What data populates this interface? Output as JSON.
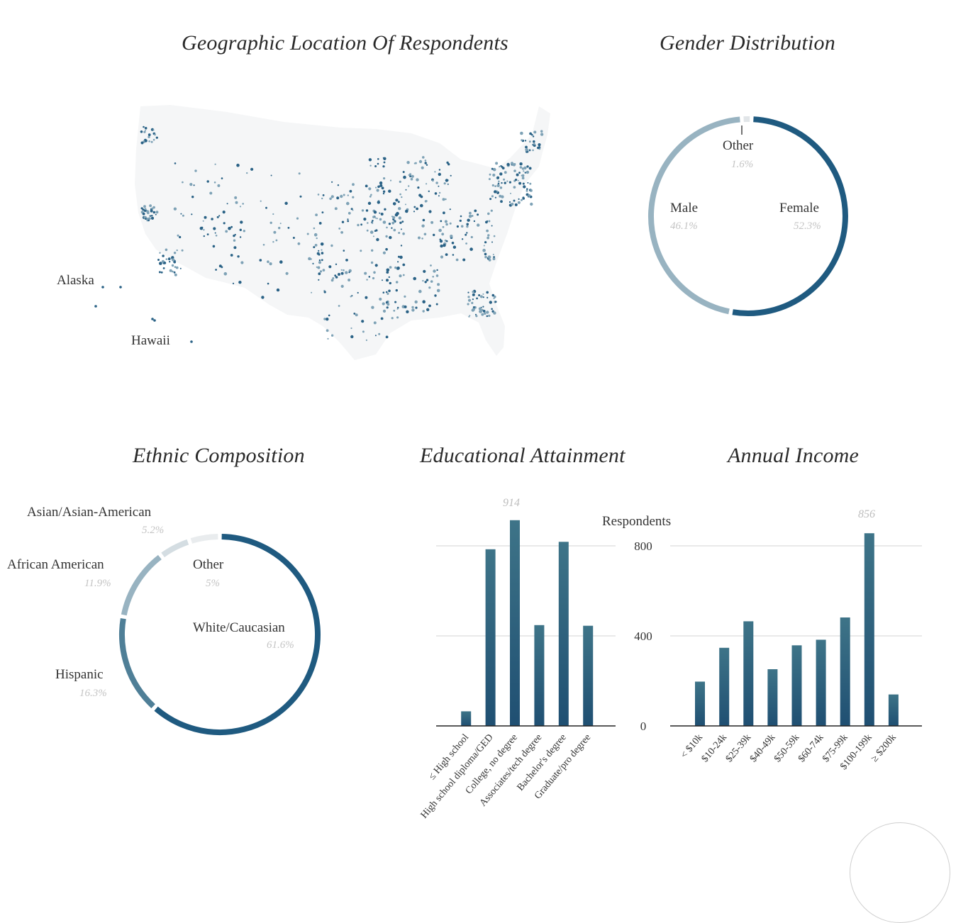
{
  "map": {
    "title": "Geographic Location Of Respondents",
    "labels": {
      "alaska": "Alaska",
      "hawaii": "Hawaii"
    }
  },
  "gender": {
    "title": "Gender Distribution",
    "segments": [
      {
        "name": "Female",
        "pct_label": "52.3%",
        "value": 52.3,
        "color": "#1f5a80"
      },
      {
        "name": "Male",
        "pct_label": "46.1%",
        "value": 46.1,
        "color": "#98b3c1"
      },
      {
        "name": "Other",
        "pct_label": "1.6%",
        "value": 1.6,
        "color": "#e1e5e8"
      }
    ]
  },
  "ethnic": {
    "title": "Ethnic Composition",
    "segments": [
      {
        "name": "White/Caucasian",
        "pct_label": "61.6%",
        "value": 61.6,
        "color": "#1f5a80"
      },
      {
        "name": "Hispanic",
        "pct_label": "16.3%",
        "value": 16.3,
        "color": "#4f7f97"
      },
      {
        "name": "African American",
        "pct_label": "11.9%",
        "value": 11.9,
        "color": "#98b3c1"
      },
      {
        "name": "Asian/Asian-American",
        "pct_label": "5.2%",
        "value": 5.2,
        "color": "#d4dde2"
      },
      {
        "name": "Other",
        "pct_label": "5%",
        "value": 5,
        "color": "#e9ecee"
      }
    ]
  },
  "education": {
    "title": "Educational Attainment",
    "max_label": "914"
  },
  "income": {
    "title": "Annual Income",
    "max_label": "856",
    "ylabel": "Respondents"
  },
  "chart_data": [
    {
      "type": "pie",
      "title": "Gender Distribution",
      "categories": [
        "Female",
        "Male",
        "Other"
      ],
      "values": [
        52.3,
        46.1,
        1.6
      ]
    },
    {
      "type": "pie",
      "title": "Ethnic Composition",
      "categories": [
        "White/Caucasian",
        "Hispanic",
        "African American",
        "Asian/Asian-American",
        "Other"
      ],
      "values": [
        61.6,
        16.3,
        11.9,
        5.2,
        5
      ]
    },
    {
      "type": "bar",
      "title": "Educational Attainment",
      "categories": [
        "≤ High school",
        "High school diploma/GED",
        "College, no degree",
        "Associates/tech degree",
        "Bachelor's degree",
        "Graduate/pro degree"
      ],
      "values": [
        65,
        785,
        914,
        448,
        818,
        445
      ],
      "ylim": [
        0,
        950
      ]
    },
    {
      "type": "bar",
      "title": "Annual Income",
      "ylabel": "Respondents",
      "categories": [
        "< $10k",
        "$10-24k",
        "$25-39k",
        "$40-49k",
        "$50-59k",
        "$60-74k",
        "$75-99k",
        "$100-199k",
        "≥ $200k"
      ],
      "values": [
        197,
        347,
        465,
        252,
        358,
        383,
        482,
        856,
        140
      ],
      "yticks": [
        0,
        400,
        800
      ],
      "ylim": [
        0,
        950
      ]
    }
  ]
}
